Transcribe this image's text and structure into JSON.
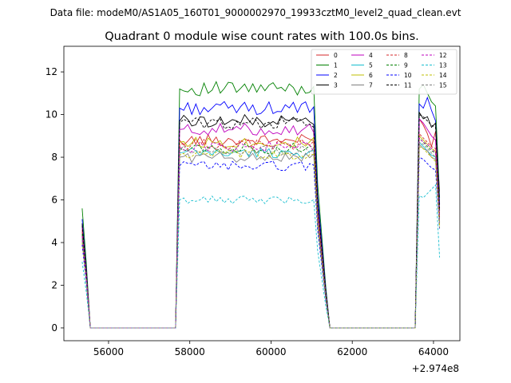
{
  "figure": {
    "suptitle": "Data file: modeM0/AS1A05_160T01_9000002970_19933cztM0_level2_quad_clean.evt",
    "title": "Quadrant 0 module wise count rates with 100.0s bins.",
    "x_offset_label": "+2.974e8"
  },
  "chart_data": {
    "type": "line",
    "title": "Quadrant 0 module wise count rates with 100.0s bins.",
    "xlabel": "",
    "ylabel": "",
    "x_offset": 297400000,
    "xlim": [
      54900,
      64650
    ],
    "ylim": [
      -0.6,
      13.2
    ],
    "xticks": [
      56000,
      58000,
      60000,
      62000,
      64000
    ],
    "xtick_labels": [
      "56000",
      "58000",
      "60000",
      "62000",
      "64000"
    ],
    "yticks": [
      0,
      2,
      4,
      6,
      8,
      10,
      12
    ],
    "ytick_labels": [
      "0",
      "2",
      "4",
      "6",
      "8",
      "10",
      "12"
    ],
    "legend_position": "top-right",
    "segments_x": {
      "start": [
        55350,
        55450,
        55550
      ],
      "gap1": [
        55650,
        55750,
        55850,
        55950,
        56050,
        56150,
        56250,
        56350,
        56450,
        56550,
        56650,
        56750,
        56850,
        56950,
        57050,
        57150,
        57250,
        57350,
        57450,
        57550,
        57650
      ],
      "g1_x0": 57750,
      "g1_step": 100,
      "g1_n": 35,
      "gap2": [
        61350,
        61450,
        61550,
        61650,
        61750,
        61850,
        61950,
        62050,
        62150,
        62250,
        62350,
        62450,
        62550,
        62650,
        62750,
        62850,
        62950,
        63050,
        63150,
        63250,
        63350,
        63450,
        63550
      ],
      "g2_x0": 63650,
      "g2_step": 100,
      "g2_n": 6
    },
    "series": [
      {
        "name": "0",
        "color": "#d62728",
        "dash": "solid",
        "start": 4.6,
        "level": 8.8,
        "g2": [
          9.8,
          9.5,
          9.1,
          8.5,
          9.2,
          6.4
        ]
      },
      {
        "name": "1",
        "color": "#008000",
        "dash": "solid",
        "start": 5.6,
        "level": 11.2,
        "g2": [
          11.2,
          11.4,
          11.0,
          10.6,
          10.4,
          6.1
        ]
      },
      {
        "name": "2",
        "color": "#0000ff",
        "dash": "solid",
        "start": 5.1,
        "level": 10.3,
        "g2": [
          10.5,
          10.3,
          10.8,
          10.2,
          9.7,
          5.8
        ]
      },
      {
        "name": "3",
        "color": "#000000",
        "dash": "solid",
        "start": 4.9,
        "level": 9.7,
        "g2": [
          10.1,
          9.8,
          9.9,
          9.4,
          9.6,
          5.5
        ]
      },
      {
        "name": "4",
        "color": "#bf00bf",
        "dash": "solid",
        "start": 4.7,
        "level": 9.3,
        "g2": [
          9.8,
          9.6,
          9.3,
          9.0,
          8.8,
          5.3
        ]
      },
      {
        "name": "5",
        "color": "#17becf",
        "dash": "solid",
        "start": 4.2,
        "level": 8.2,
        "g2": [
          8.7,
          8.5,
          8.3,
          8.1,
          8.0,
          5.0
        ]
      },
      {
        "name": "6",
        "color": "#bfbf00",
        "dash": "solid",
        "start": 4.4,
        "level": 8.7,
        "g2": [
          9.0,
          8.8,
          8.6,
          8.4,
          8.3,
          4.8
        ]
      },
      {
        "name": "7",
        "color": "#808080",
        "dash": "solid",
        "start": 4.1,
        "level": 8.0,
        "g2": [
          8.6,
          8.4,
          8.3,
          8.0,
          7.9,
          4.9
        ]
      },
      {
        "name": "8",
        "color": "#d62728",
        "dash": "dashed",
        "start": 4.5,
        "level": 8.6,
        "g2": [
          9.1,
          8.9,
          8.7,
          8.5,
          8.4,
          5.2
        ]
      },
      {
        "name": "9",
        "color": "#008000",
        "dash": "dashed",
        "start": 4.4,
        "level": 8.4,
        "g2": [
          8.9,
          8.7,
          8.5,
          8.3,
          8.2,
          5.1
        ]
      },
      {
        "name": "10",
        "color": "#0000ff",
        "dash": "dashed",
        "start": 3.9,
        "level": 7.6,
        "g2": [
          8.0,
          7.9,
          7.7,
          7.5,
          7.4,
          4.6
        ]
      },
      {
        "name": "11",
        "color": "#000000",
        "dash": "dashed",
        "start": 4.8,
        "level": 9.6,
        "g2": [
          10.0,
          9.9,
          9.7,
          9.5,
          9.4,
          5.6
        ]
      },
      {
        "name": "12",
        "color": "#bf00bf",
        "dash": "dashed",
        "start": 4.3,
        "level": 8.5,
        "g2": [
          8.9,
          8.7,
          8.6,
          8.4,
          8.2,
          5.0
        ]
      },
      {
        "name": "13",
        "color": "#17becf",
        "dash": "dashed",
        "start": 3.1,
        "level": 6.0,
        "g2": [
          6.2,
          6.1,
          6.3,
          6.5,
          6.7,
          3.3
        ]
      },
      {
        "name": "14",
        "color": "#bfbf00",
        "dash": "dashed",
        "start": 4.0,
        "level": 8.1,
        "g2": [
          8.5,
          8.4,
          8.2,
          8.0,
          7.8,
          4.7
        ]
      },
      {
        "name": "15",
        "color": "#808080",
        "dash": "dashed",
        "start": 4.2,
        "level": 8.3,
        "g2": [
          8.7,
          8.6,
          8.4,
          8.2,
          8.0,
          4.9
        ]
      }
    ]
  }
}
